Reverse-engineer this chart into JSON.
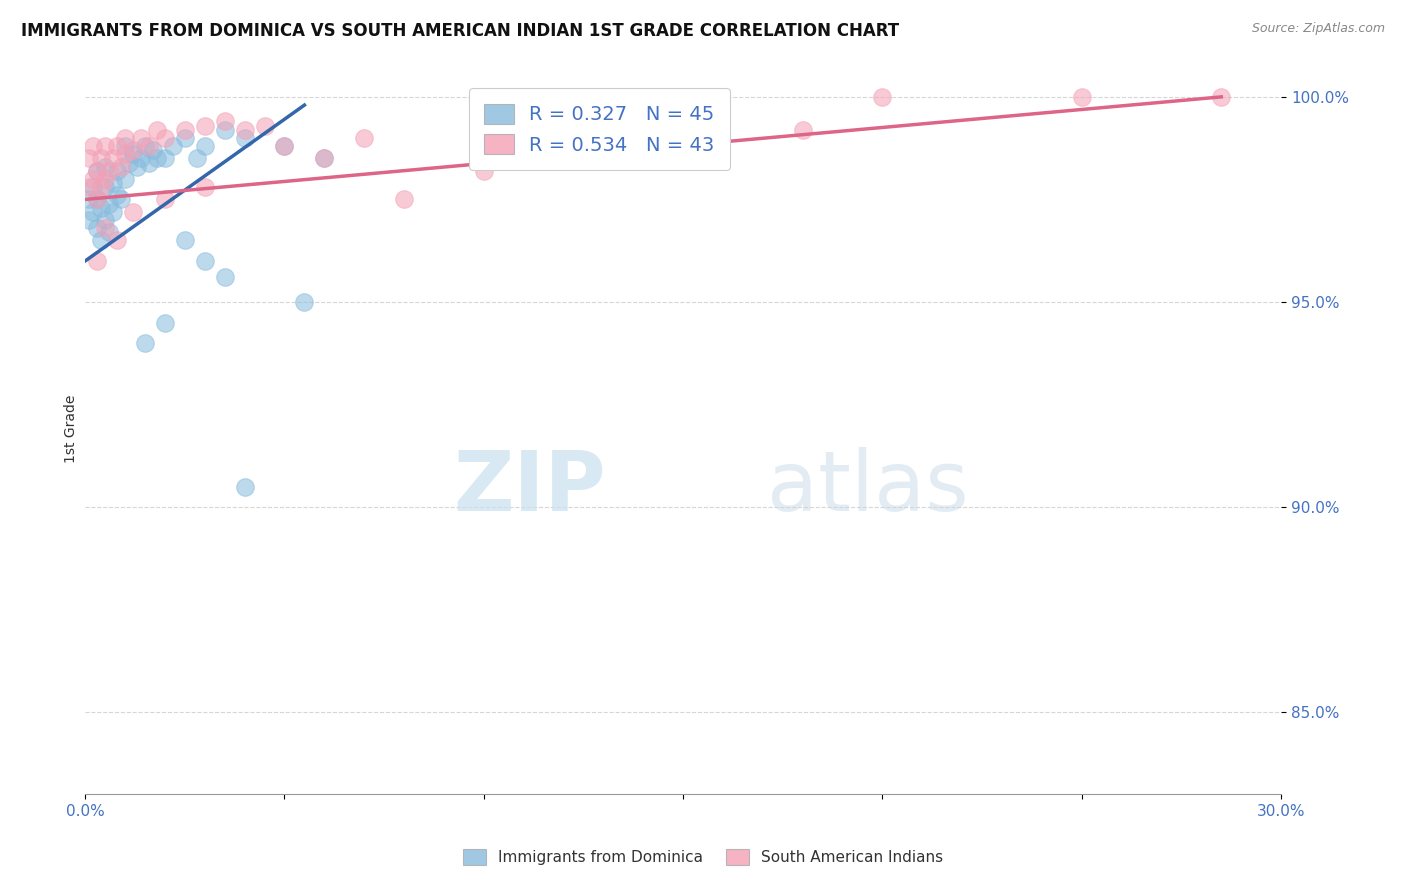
{
  "title": "IMMIGRANTS FROM DOMINICA VS SOUTH AMERICAN INDIAN 1ST GRADE CORRELATION CHART",
  "source_text": "Source: ZipAtlas.com",
  "ylabel": "1st Grade",
  "xlim": [
    0.0,
    0.3
  ],
  "ylim": [
    0.83,
    1.008
  ],
  "xtick_positions": [
    0.0,
    0.05,
    0.1,
    0.15,
    0.2,
    0.25,
    0.3
  ],
  "xtick_labels": [
    "0.0%",
    "",
    "",
    "",
    "",
    "",
    "30.0%"
  ],
  "ytick_positions": [
    0.85,
    0.9,
    0.95,
    1.0
  ],
  "ytick_labels": [
    "85.0%",
    "90.0%",
    "95.0%",
    "100.0%"
  ],
  "blue_color": "#88bbdd",
  "pink_color": "#f4a0b5",
  "blue_line_color": "#3366aa",
  "pink_line_color": "#dd6688",
  "R_blue": 0.327,
  "N_blue": 45,
  "R_pink": 0.534,
  "N_pink": 43,
  "legend_label_blue": "Immigrants from Dominica",
  "legend_label_pink": "South American Indians",
  "watermark_zip": "ZIP",
  "watermark_atlas": "atlas",
  "background_color": "#ffffff",
  "tick_color": "#4472c4",
  "label_color": "#333333",
  "blue_x": [
    0.001,
    0.001,
    0.002,
    0.002,
    0.003,
    0.003,
    0.003,
    0.004,
    0.004,
    0.005,
    0.005,
    0.005,
    0.006,
    0.006,
    0.007,
    0.007,
    0.008,
    0.008,
    0.009,
    0.01,
    0.01,
    0.011,
    0.012,
    0.013,
    0.014,
    0.015,
    0.016,
    0.017,
    0.018,
    0.02,
    0.022,
    0.025,
    0.028,
    0.03,
    0.035,
    0.04,
    0.05,
    0.06,
    0.025,
    0.03,
    0.035,
    0.055,
    0.02,
    0.015,
    0.04
  ],
  "blue_y": [
    0.97,
    0.975,
    0.972,
    0.978,
    0.968,
    0.975,
    0.982,
    0.965,
    0.973,
    0.97,
    0.978,
    0.983,
    0.967,
    0.974,
    0.972,
    0.979,
    0.976,
    0.982,
    0.975,
    0.98,
    0.988,
    0.984,
    0.986,
    0.983,
    0.985,
    0.988,
    0.984,
    0.987,
    0.985,
    0.985,
    0.988,
    0.99,
    0.985,
    0.988,
    0.992,
    0.99,
    0.988,
    0.985,
    0.965,
    0.96,
    0.956,
    0.95,
    0.945,
    0.94,
    0.905
  ],
  "pink_x": [
    0.001,
    0.001,
    0.002,
    0.002,
    0.003,
    0.003,
    0.004,
    0.004,
    0.005,
    0.005,
    0.006,
    0.007,
    0.008,
    0.009,
    0.01,
    0.01,
    0.012,
    0.014,
    0.016,
    0.018,
    0.02,
    0.025,
    0.03,
    0.035,
    0.04,
    0.045,
    0.05,
    0.06,
    0.07,
    0.08,
    0.1,
    0.12,
    0.15,
    0.18,
    0.2,
    0.25,
    0.285,
    0.003,
    0.005,
    0.008,
    0.012,
    0.02,
    0.03
  ],
  "pink_y": [
    0.978,
    0.985,
    0.98,
    0.988,
    0.975,
    0.982,
    0.978,
    0.985,
    0.98,
    0.988,
    0.982,
    0.985,
    0.988,
    0.983,
    0.986,
    0.99,
    0.987,
    0.99,
    0.988,
    0.992,
    0.99,
    0.992,
    0.993,
    0.994,
    0.992,
    0.993,
    0.988,
    0.985,
    0.99,
    0.975,
    0.982,
    0.985,
    0.988,
    0.992,
    1.0,
    1.0,
    1.0,
    0.96,
    0.968,
    0.965,
    0.972,
    0.975,
    0.978
  ],
  "blue_trend_x": [
    0.0,
    0.055
  ],
  "blue_trend_y": [
    0.96,
    0.998
  ],
  "pink_trend_x": [
    0.0,
    0.285
  ],
  "pink_trend_y": [
    0.975,
    1.0
  ]
}
